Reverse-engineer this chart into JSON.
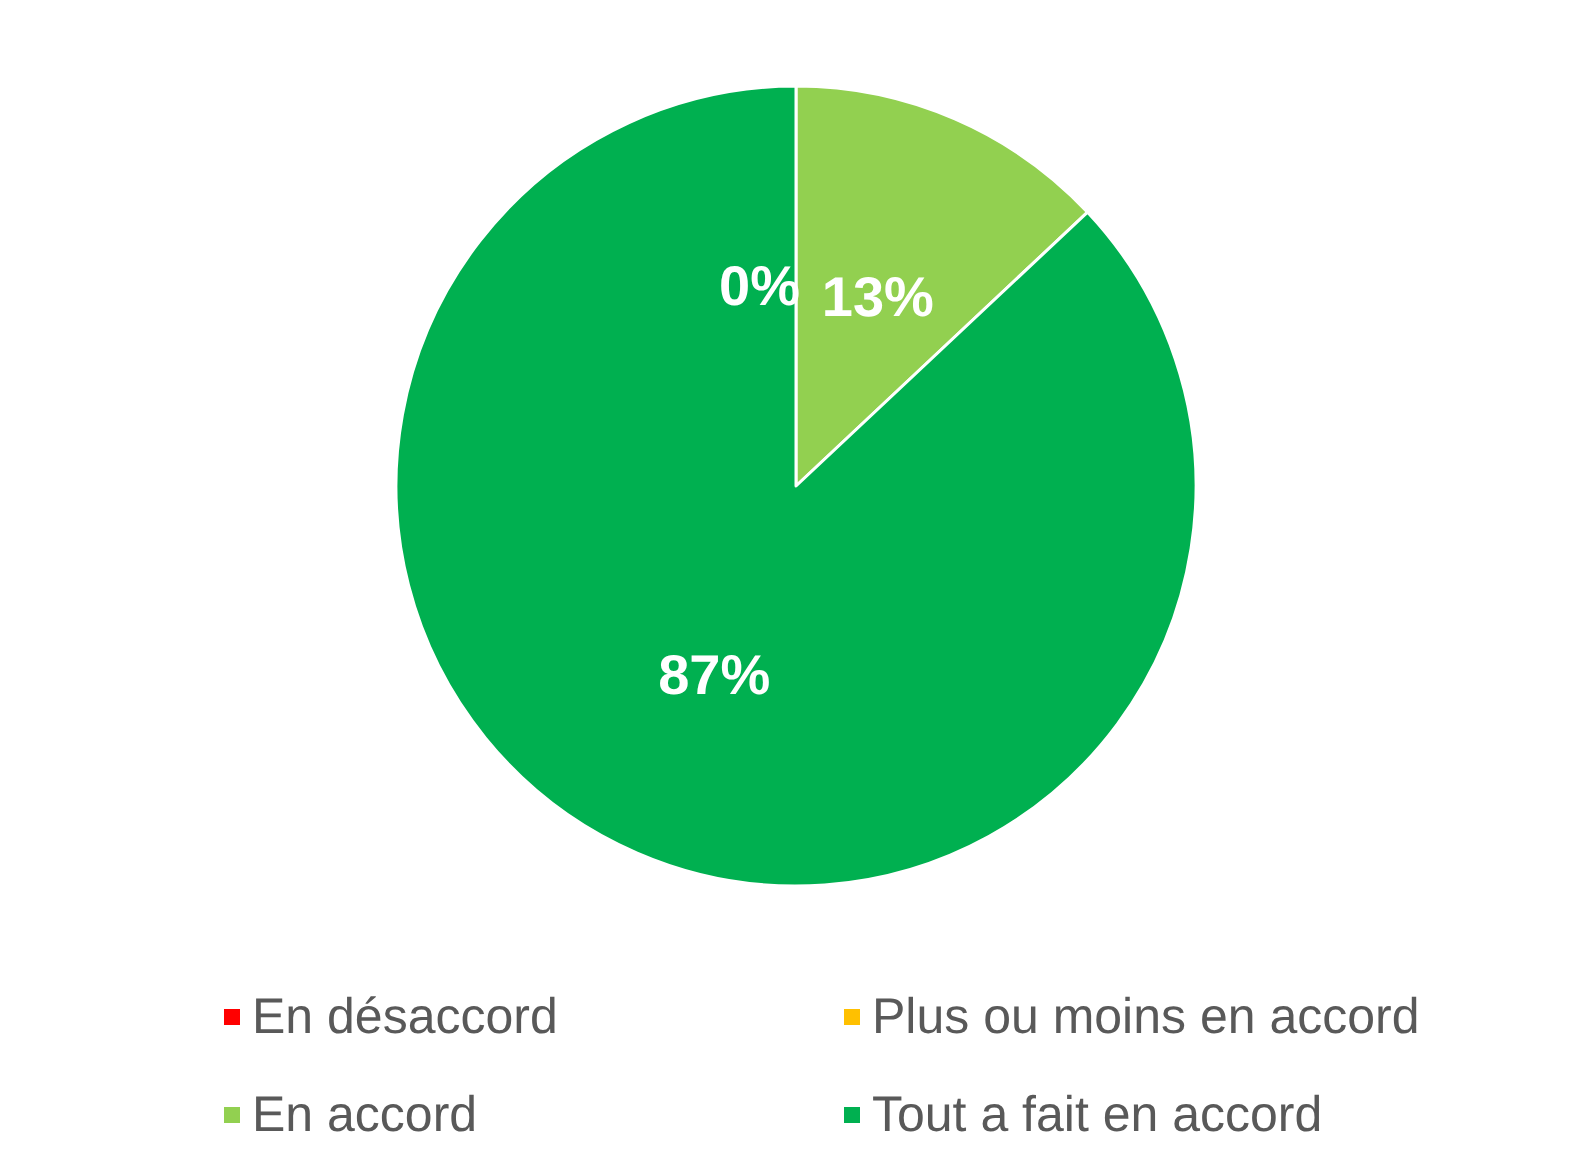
{
  "chart_data": {
    "type": "pie",
    "categories": [
      "En désaccord",
      "Plus ou moins en accord",
      "En accord",
      "Tout a fait en accord"
    ],
    "values": [
      0,
      0,
      13,
      87
    ],
    "colors": [
      "#ff0000",
      "#ffc000",
      "#92d050",
      "#00b050"
    ],
    "value_labels": [
      "0%",
      null,
      "13%",
      "87%"
    ],
    "legend": "bottom"
  }
}
